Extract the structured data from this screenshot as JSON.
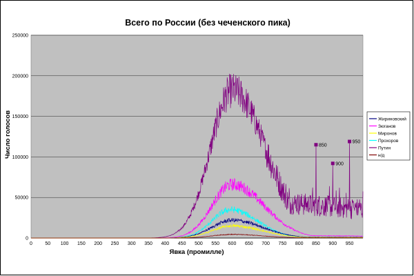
{
  "chart_data": {
    "type": "line",
    "title": "Всего по России (без чеченского пика)",
    "xlabel": "Явка (промилле)",
    "ylabel": "Число голосов",
    "xlim": [
      0,
      990
    ],
    "ylim": [
      0,
      250000
    ],
    "x_ticks": [
      0,
      50,
      100,
      150,
      200,
      250,
      300,
      350,
      400,
      450,
      500,
      550,
      600,
      650,
      700,
      750,
      800,
      850,
      900,
      950
    ],
    "y_ticks": [
      0,
      50000,
      100000,
      150000,
      200000,
      250000
    ],
    "grid": "horizontal",
    "plot_background": "#c0c0c0",
    "legend_position": "right",
    "series": [
      {
        "name": "Жириновский",
        "color": "#000080",
        "peak_x": 600,
        "peak_y": 22000,
        "width_left": 60,
        "width_right": 90,
        "tail": 1200
      },
      {
        "name": "Зюганов",
        "color": "#ff00ff",
        "peak_x": 600,
        "peak_y": 66000,
        "width_left": 60,
        "width_right": 95,
        "tail": 3000
      },
      {
        "name": "Миронов",
        "color": "#ffff00",
        "peak_x": 600,
        "peak_y": 15000,
        "width_left": 60,
        "width_right": 90,
        "tail": 800
      },
      {
        "name": "Прохоров",
        "color": "#00ffff",
        "peak_x": 595,
        "peak_y": 35000,
        "width_left": 55,
        "width_right": 80,
        "tail": 1200
      },
      {
        "name": "Путин",
        "color": "#800080",
        "peak_x": 600,
        "peak_y": 182000,
        "width_left": 65,
        "width_right": 100,
        "tail": 42000
      },
      {
        "name": "н/д",
        "color": "#800000",
        "peak_x": 600,
        "peak_y": 4500,
        "width_left": 60,
        "width_right": 90,
        "tail": 300
      }
    ],
    "annotations": [
      {
        "label": "850",
        "x": 850,
        "y": 115000
      },
      {
        "label": "900",
        "x": 900,
        "y": 92000
      },
      {
        "label": "950",
        "x": 950,
        "y": 119000
      }
    ]
  }
}
